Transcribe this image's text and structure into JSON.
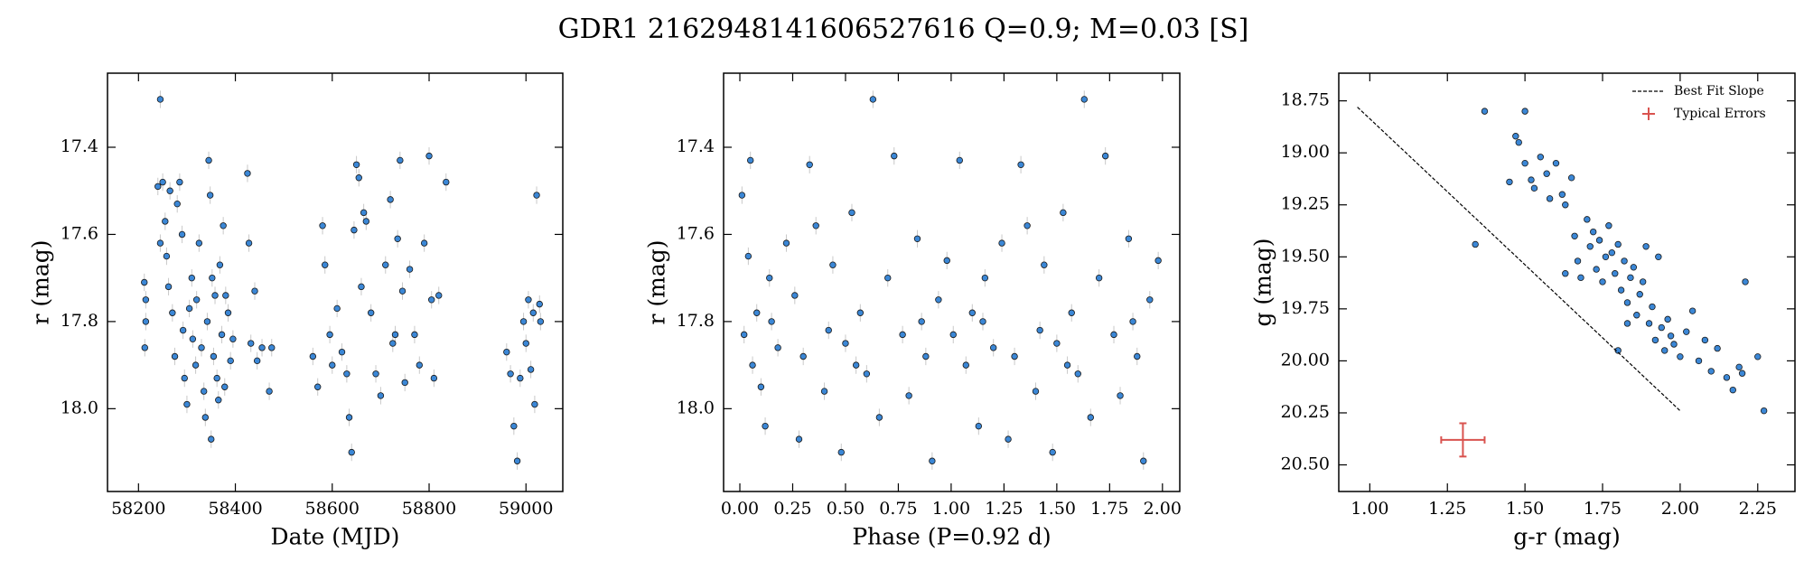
{
  "title": "GDR1 2162948141606527616  Q=0.9; M=0.03 [S]",
  "chart_data": [
    {
      "type": "scatter",
      "xlabel": "Date (MJD)",
      "ylabel": "r (mag)",
      "color": "#3b87d6",
      "invert_y": true,
      "yerr": 0.02,
      "xlim": [
        58136,
        59076
      ],
      "ylim": [
        17.23,
        18.19
      ],
      "xticks": [
        58200,
        58400,
        58600,
        58800,
        59000
      ],
      "yticks": [
        17.4,
        17.6,
        17.8,
        {
          "value": 18.0,
          "label": "18.0"
        }
      ],
      "x": [
        58212,
        58213,
        58215,
        58215,
        58240,
        58245,
        58245,
        58250,
        58255,
        58258,
        58262,
        58265,
        58270,
        58275,
        58280,
        58285,
        58290,
        58292,
        58295,
        58300,
        58305,
        58310,
        58312,
        58318,
        58320,
        58325,
        58330,
        58335,
        58338,
        58342,
        58345,
        58348,
        58350,
        58352,
        58355,
        58358,
        58362,
        58365,
        58368,
        58372,
        58375,
        58378,
        58380,
        58385,
        58390,
        58395,
        58425,
        58428,
        58432,
        58440,
        58445,
        58455,
        58470,
        58475,
        58560,
        58570,
        58580,
        58585,
        58595,
        58600,
        58610,
        58620,
        58630,
        58635,
        58640,
        58645,
        58650,
        58655,
        58660,
        58665,
        58670,
        58680,
        58690,
        58700,
        58710,
        58720,
        58725,
        58730,
        58735,
        58740,
        58745,
        58750,
        58760,
        58770,
        58780,
        58790,
        58800,
        58805,
        58810,
        58820,
        58835,
        58960,
        58968,
        58975,
        58982,
        58988,
        58995,
        59000,
        59005,
        59010,
        59015,
        59018,
        59022,
        59028,
        59030
      ],
      "values": [
        17.71,
        17.86,
        17.75,
        17.8,
        17.49,
        17.29,
        17.62,
        17.48,
        17.57,
        17.65,
        17.72,
        17.5,
        17.78,
        17.88,
        17.53,
        17.48,
        17.6,
        17.82,
        17.93,
        17.99,
        17.77,
        17.7,
        17.84,
        17.9,
        17.75,
        17.62,
        17.86,
        17.96,
        18.02,
        17.8,
        17.43,
        17.51,
        18.07,
        17.7,
        17.88,
        17.74,
        17.93,
        17.98,
        17.67,
        17.83,
        17.58,
        17.95,
        17.74,
        17.78,
        17.89,
        17.84,
        17.46,
        17.62,
        17.85,
        17.73,
        17.89,
        17.86,
        17.96,
        17.86,
        17.88,
        17.95,
        17.58,
        17.67,
        17.83,
        17.9,
        17.77,
        17.87,
        17.92,
        18.02,
        18.1,
        17.59,
        17.44,
        17.47,
        17.72,
        17.55,
        17.57,
        17.78,
        17.92,
        17.97,
        17.67,
        17.52,
        17.85,
        17.83,
        17.61,
        17.43,
        17.73,
        17.94,
        17.68,
        17.83,
        17.9,
        17.62,
        17.42,
        17.75,
        17.93,
        17.74,
        17.48,
        17.87,
        17.92,
        18.04,
        18.12,
        17.93,
        17.8,
        17.85,
        17.75,
        17.91,
        17.78,
        17.99,
        17.51,
        17.76,
        17.8
      ]
    },
    {
      "type": "scatter",
      "xlabel": "Phase (P=0.92 d)",
      "ylabel": "r (mag)",
      "color": "#3b87d6",
      "invert_y": true,
      "yerr": 0.02,
      "xlim": [
        -0.077,
        2.082
      ],
      "ylim": [
        17.23,
        18.19
      ],
      "xticks": [
        {
          "value": 0,
          "label": "0.00"
        },
        {
          "value": 0.25,
          "label": "0.25"
        },
        {
          "value": 0.5,
          "label": "0.50"
        },
        {
          "value": 0.75,
          "label": "0.75"
        },
        {
          "value": 1,
          "label": "1.00"
        },
        {
          "value": 1.25,
          "label": "1.25"
        },
        {
          "value": 1.5,
          "label": "1.50"
        },
        {
          "value": 1.75,
          "label": "1.75"
        },
        {
          "value": 2,
          "label": "2.00"
        }
      ],
      "yticks": [
        17.4,
        17.6,
        17.8,
        {
          "value": 18.0,
          "label": "18.0"
        }
      ],
      "x": [
        0.01,
        0.02,
        0.04,
        0.05,
        0.06,
        0.08,
        0.1,
        0.12,
        0.14,
        0.18,
        0.22,
        0.26,
        0.28,
        0.3,
        0.33,
        0.36,
        0.4,
        0.44,
        0.48,
        0.5,
        0.53,
        0.57,
        0.6,
        0.63,
        0.66,
        0.7,
        0.73,
        0.77,
        0.8,
        0.84,
        0.88,
        0.91,
        0.94,
        0.98,
        1.01,
        1.04,
        1.07,
        1.1,
        1.13,
        1.16,
        1.2,
        1.24,
        1.27,
        1.3,
        1.33,
        1.36,
        1.4,
        1.44,
        1.48,
        1.5,
        1.53,
        1.57,
        1.6,
        1.63,
        1.66,
        1.7,
        1.73,
        1.77,
        1.8,
        1.84,
        1.88,
        1.91,
        1.94,
        1.98,
        0.15,
        1.15,
        0.42,
        1.42,
        0.86,
        1.86,
        0.55,
        1.55
      ],
      "values": [
        17.51,
        17.83,
        17.65,
        17.43,
        17.9,
        17.78,
        17.95,
        18.04,
        17.7,
        17.86,
        17.62,
        17.74,
        18.07,
        17.88,
        17.44,
        17.58,
        17.96,
        17.67,
        18.1,
        17.85,
        17.55,
        17.78,
        17.92,
        17.29,
        18.02,
        17.7,
        17.42,
        17.83,
        17.97,
        17.61,
        17.88,
        18.12,
        17.75,
        17.66,
        17.83,
        17.43,
        17.9,
        17.78,
        18.04,
        17.7,
        17.86,
        17.62,
        18.07,
        17.88,
        17.44,
        17.58,
        17.96,
        17.67,
        18.1,
        17.85,
        17.55,
        17.78,
        17.92,
        17.29,
        18.02,
        17.7,
        17.42,
        17.83,
        17.97,
        17.61,
        17.88,
        18.12,
        17.75,
        17.66,
        17.8,
        17.8,
        17.82,
        17.82,
        17.8,
        17.8,
        17.9,
        17.9
      ]
    },
    {
      "type": "scatter",
      "xlabel": "g-r (mag)",
      "ylabel": "g (mag)",
      "color": "#3b87d6",
      "invert_y": true,
      "xlim": [
        0.9,
        2.37
      ],
      "ylim": [
        18.617,
        20.628
      ],
      "xticks": [
        {
          "value": 1,
          "label": "1.00"
        },
        {
          "value": 1.25,
          "label": "1.25"
        },
        {
          "value": 1.5,
          "label": "1.50"
        },
        {
          "value": 1.75,
          "label": "1.75"
        },
        {
          "value": 2,
          "label": "2.00"
        },
        {
          "value": 2.25,
          "label": "2.25"
        }
      ],
      "yticks": [
        18.75,
        {
          "value": 19,
          "label": "19.00"
        },
        19.25,
        {
          "value": 19.5,
          "label": "19.50"
        },
        19.75,
        {
          "value": 20,
          "label": "20.00"
        },
        20.25,
        {
          "value": 20.5,
          "label": "20.50"
        }
      ],
      "x": [
        1.34,
        1.37,
        1.45,
        1.47,
        1.48,
        1.5,
        1.5,
        1.52,
        1.53,
        1.55,
        1.57,
        1.58,
        1.6,
        1.62,
        1.63,
        1.65,
        1.66,
        1.67,
        1.68,
        1.7,
        1.71,
        1.72,
        1.73,
        1.74,
        1.75,
        1.76,
        1.77,
        1.78,
        1.79,
        1.8,
        1.81,
        1.82,
        1.83,
        1.84,
        1.85,
        1.86,
        1.87,
        1.88,
        1.89,
        1.9,
        1.91,
        1.92,
        1.93,
        1.94,
        1.95,
        1.96,
        1.97,
        1.98,
        2.0,
        2.02,
        2.04,
        2.06,
        2.08,
        2.1,
        2.12,
        2.15,
        2.17,
        2.19,
        2.2,
        2.21,
        2.25,
        2.27,
        1.8,
        1.83,
        1.63
      ],
      "values": [
        19.44,
        18.8,
        19.14,
        18.92,
        18.95,
        18.8,
        19.05,
        19.13,
        19.17,
        19.02,
        19.1,
        19.22,
        19.05,
        19.2,
        19.25,
        19.12,
        19.4,
        19.52,
        19.6,
        19.32,
        19.45,
        19.38,
        19.56,
        19.42,
        19.62,
        19.5,
        19.35,
        19.48,
        19.58,
        19.44,
        19.66,
        19.52,
        19.72,
        19.6,
        19.55,
        19.78,
        19.68,
        19.62,
        19.45,
        19.82,
        19.74,
        19.9,
        19.5,
        19.84,
        19.95,
        19.8,
        19.88,
        19.92,
        19.98,
        19.86,
        19.76,
        20.0,
        19.9,
        20.05,
        19.94,
        20.08,
        20.14,
        20.03,
        20.06,
        19.62,
        19.98,
        20.24,
        19.95,
        19.82,
        19.58
      ],
      "fit_line": {
        "label": "Best Fit Slope",
        "color": "#000000",
        "x": [
          0.96,
          2.0
        ],
        "y": [
          18.78,
          20.24
        ]
      },
      "typical_error": {
        "label": "Typical Errors",
        "color": "#d9534f",
        "x": 1.3,
        "y": 20.38,
        "xerr": 0.07,
        "yerr": 0.08
      },
      "legend": "upper right"
    }
  ]
}
